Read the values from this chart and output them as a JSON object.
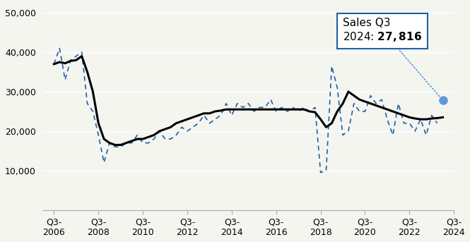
{
  "title": "",
  "background_color": "#f5f5f0",
  "annotation_text": "Sales Q3\n2024: ¿27,816",
  "annotation_label": "Sales Q3\n2024: 27,816",
  "annotation_value": 27816,
  "ylim": [
    0,
    52000
  ],
  "yticks": [
    0,
    10000,
    20000,
    30000,
    40000,
    50000
  ],
  "quarterly_data": [
    37000,
    41000,
    33000,
    38000,
    39000,
    40000,
    27000,
    25000,
    19000,
    12000,
    17000,
    16000,
    16000,
    17000,
    17000,
    19000,
    17000,
    17000,
    18000,
    20000,
    18000,
    18000,
    19000,
    21000,
    20000,
    21000,
    22000,
    24000,
    22000,
    23000,
    24000,
    27000,
    24000,
    27000,
    26000,
    27000,
    25000,
    26000,
    26000,
    28000,
    25000,
    26000,
    25000,
    26000,
    25000,
    26000,
    25000,
    26000,
    9500,
    10000,
    36500,
    31000,
    19000,
    20000,
    27000,
    25000,
    25000,
    29000,
    27000,
    28000,
    23000,
    19000,
    27000,
    22000,
    22000,
    20000,
    23000,
    19000,
    24000,
    22000,
    27816
  ],
  "annual_data": [
    37000,
    37500,
    37200,
    37800,
    38000,
    39000,
    35000,
    30000,
    22000,
    18000,
    17000,
    16500,
    16500,
    17000,
    17500,
    18000,
    18000,
    18500,
    19000,
    20000,
    20500,
    21000,
    22000,
    22500,
    23000,
    23500,
    24000,
    24500,
    24500,
    25000,
    25200,
    25500,
    25500,
    25500,
    25500,
    25500,
    25500,
    25500,
    25500,
    25500,
    25500,
    25500,
    25500,
    25500,
    25500,
    25500,
    25000,
    24800,
    23000,
    21000,
    22000,
    25000,
    27000,
    30000,
    29000,
    28000,
    27500,
    27000,
    26500,
    26000,
    25500,
    25000,
    24500,
    24000,
    23500,
    23200,
    23000,
    23000,
    23200,
    23300,
    23500
  ],
  "line_color": "#1f5fa6",
  "annual_color": "#000000",
  "dot_color": "#5b9bd5",
  "annotation_arrow_color": "#5b9bd5",
  "x_tick_labels": [
    "Q3-\n2006",
    "Q3-\n2008",
    "Q3-\n2010",
    "Q3-\n2012",
    "Q3-\n2014",
    "Q3-\n2016",
    "Q3-\n2018",
    "Q3-\n2020",
    "Q3-\n2022",
    "Q3-\n2024"
  ],
  "x_tick_positions": [
    0,
    8,
    16,
    24,
    32,
    40,
    48,
    56,
    64,
    72
  ]
}
